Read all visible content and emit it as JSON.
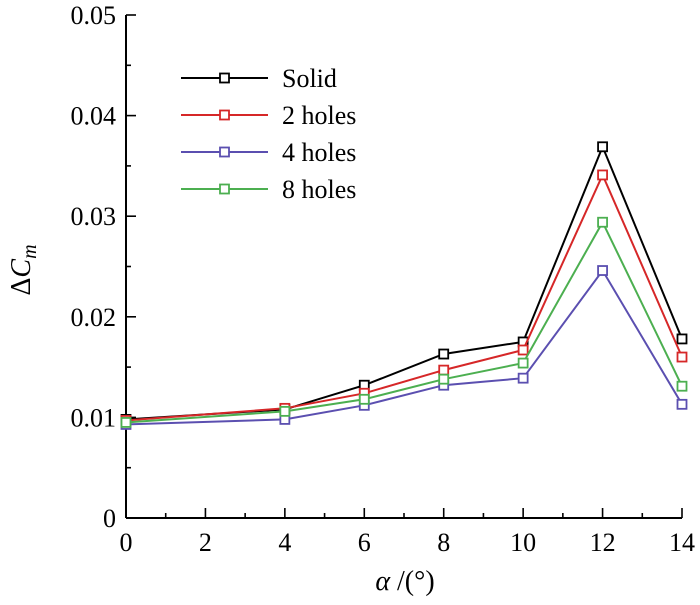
{
  "chart_data": {
    "type": "line",
    "title": "",
    "xlabel_symbol": "α",
    "xlabel_unit": " /(°)",
    "ylabel_delta": "Δ",
    "ylabel_var": "C",
    "ylabel_sub": "m",
    "xlim": [
      0,
      14
    ],
    "ylim": [
      0,
      0.05
    ],
    "xticks": [
      0,
      2,
      4,
      6,
      8,
      10,
      12,
      14
    ],
    "yticks": [
      0,
      0.01,
      0.02,
      0.03,
      0.04,
      0.05
    ],
    "xtick_labels": [
      "0",
      "2",
      "4",
      "6",
      "8",
      "10",
      "12",
      "14"
    ],
    "ytick_labels": [
      "0",
      "0.01",
      "0.02",
      "0.03",
      "0.04",
      "0.05"
    ],
    "x": [
      0,
      4,
      6,
      8,
      10,
      12,
      14
    ],
    "series": [
      {
        "name": "Solid",
        "color": "#000000",
        "values": [
          0.0098,
          0.0108,
          0.0132,
          0.0163,
          0.0175,
          0.0369,
          0.0178
        ]
      },
      {
        "name": "2 holes",
        "color": "#d62728",
        "values": [
          0.0097,
          0.0109,
          0.0124,
          0.0147,
          0.0167,
          0.0341,
          0.016
        ]
      },
      {
        "name": "4 holes",
        "color": "#5b4fb0",
        "values": [
          0.0093,
          0.0098,
          0.0112,
          0.0132,
          0.0139,
          0.0246,
          0.0113
        ]
      },
      {
        "name": "8 holes",
        "color": "#4caf50",
        "values": [
          0.0095,
          0.0106,
          0.0118,
          0.0138,
          0.0154,
          0.0294,
          0.0131
        ]
      }
    ],
    "legend_position": "top-left",
    "grid": false
  }
}
